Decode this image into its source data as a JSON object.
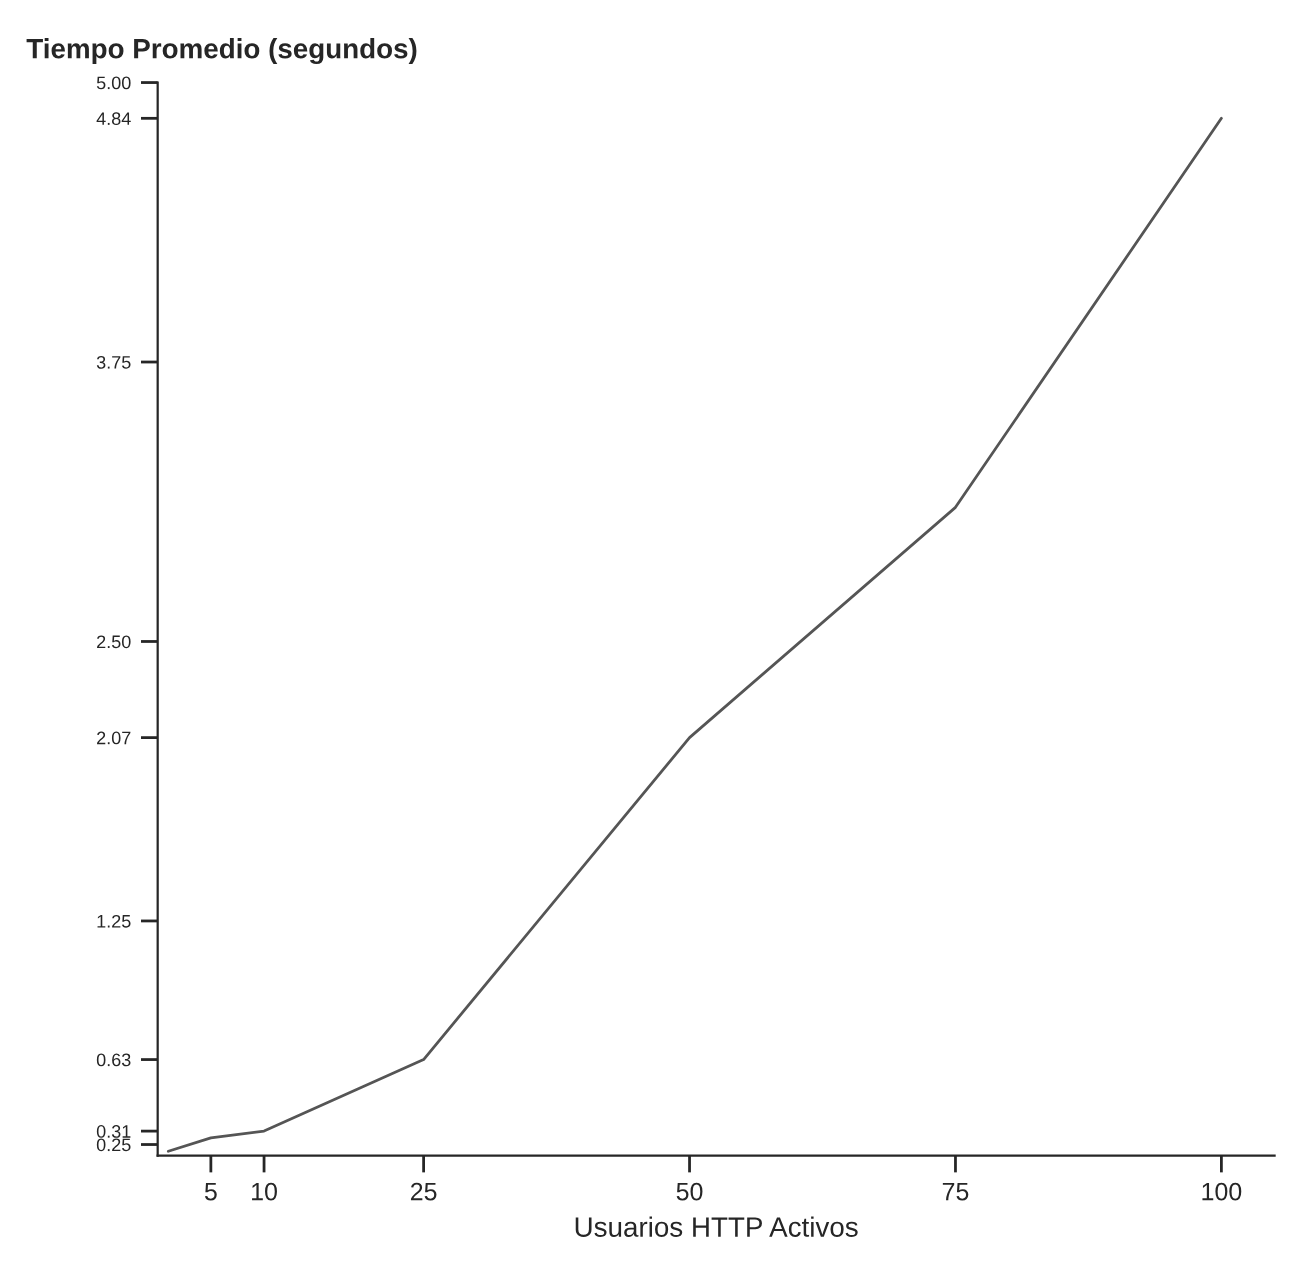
{
  "chart_data": {
    "type": "line",
    "title": "Tiempo Promedio (segundos)",
    "xlabel": "Usuarios HTTP Activos",
    "x": [
      1,
      5,
      10,
      25,
      50,
      75,
      100
    ],
    "series": [
      {
        "color": "#555555",
        "values": [
          0.22,
          0.28,
          0.31,
          0.63,
          2.07,
          3.1,
          4.84
        ]
      }
    ],
    "xlim": [
      0,
      105
    ],
    "ylim": [
      0.2,
      5.0
    ],
    "xticks": [
      5,
      10,
      25,
      50,
      75,
      100
    ],
    "yticks": [
      0.25,
      0.31,
      0.63,
      1.25,
      2.07,
      {
        "value": 2.5,
        "label": "2.50"
      },
      {
        "value": 3.75,
        "label": "3.75"
      },
      4.84,
      {
        "value": 5.0,
        "label": "5.00"
      }
    ],
    "grid": false,
    "legend": false,
    "marker": "none",
    "line_style": "solid"
  }
}
